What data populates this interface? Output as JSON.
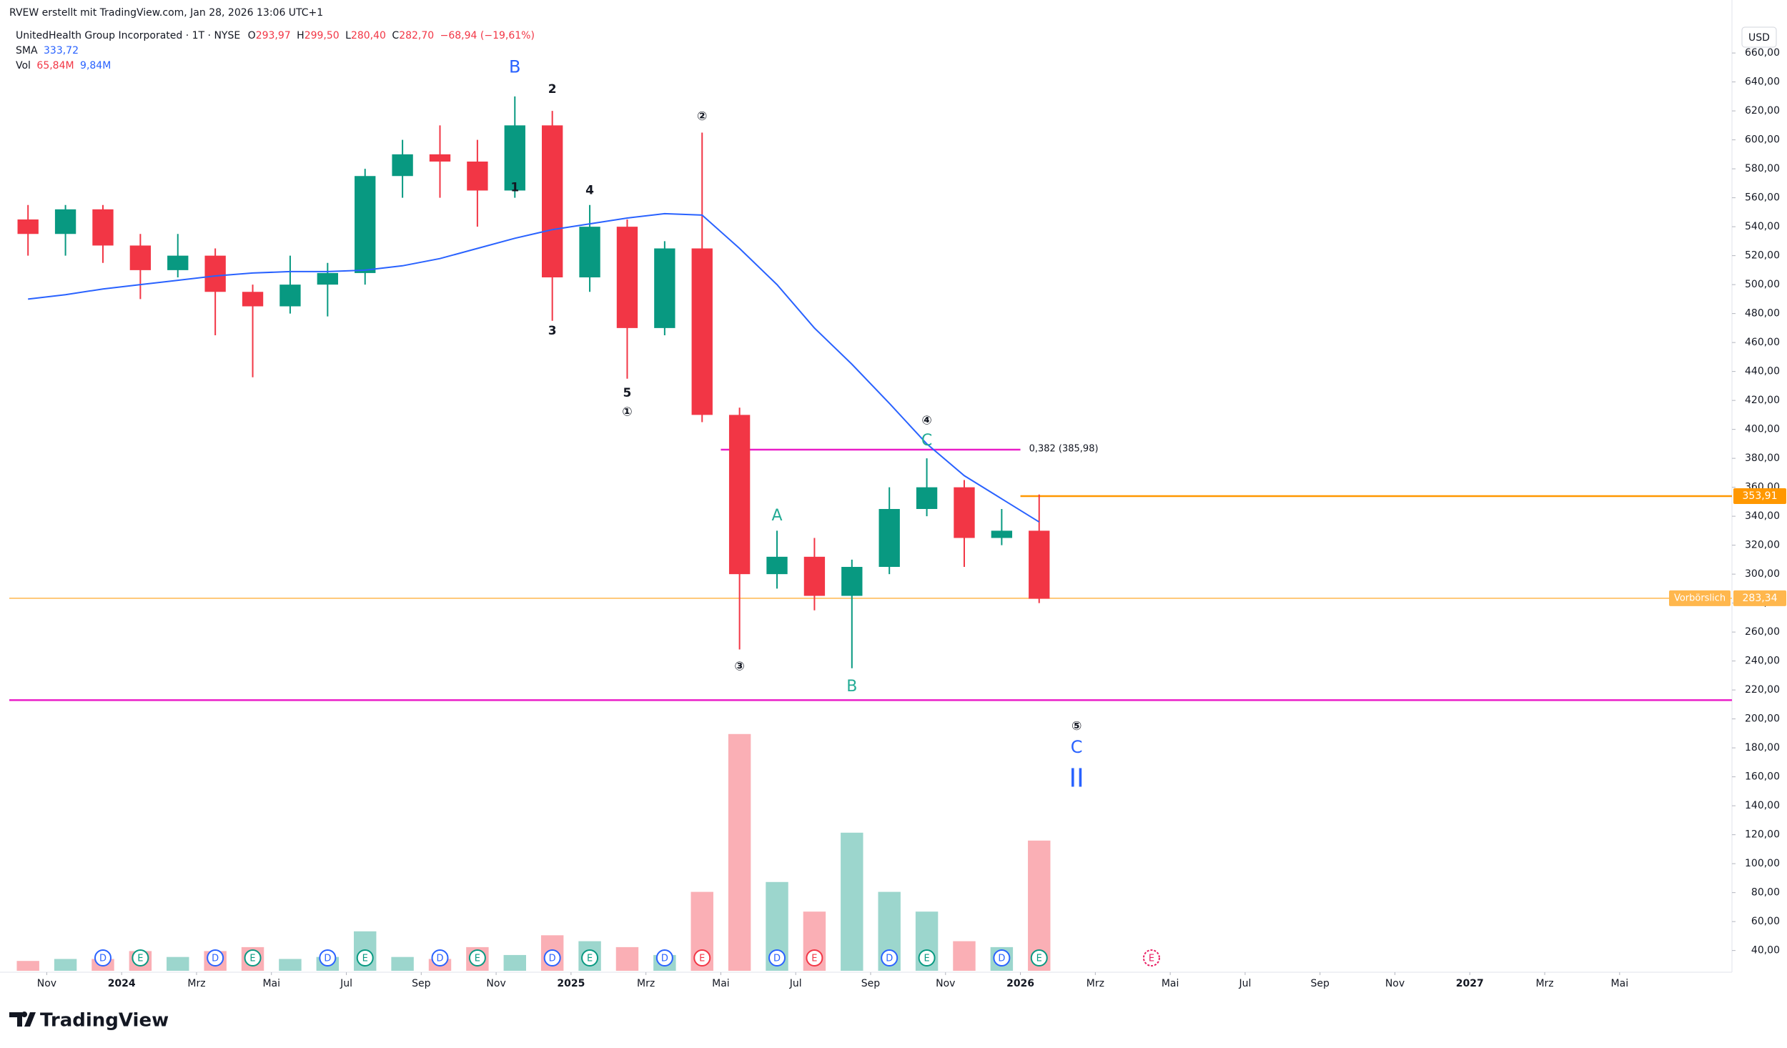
{
  "chart_data": {
    "type": "candlestick",
    "header": "RVEW erstellt mit TradingView.com, Jan 28, 2026 13:06 UTC+1",
    "legend": {
      "symbol": "UnitedHealth Group Incorporated · 1T · NYSE",
      "ohlc": [
        {
          "label": "O",
          "value": "293,97"
        },
        {
          "label": "H",
          "value": "299,50"
        },
        {
          "label": "L",
          "value": "280,40"
        },
        {
          "label": "C",
          "value": "282,70"
        }
      ],
      "change": "−68,94 (−19,61%)",
      "sma_name": "SMA",
      "sma_value": "333,72",
      "vol_name": "Vol",
      "vol_value": "65,84M",
      "vol_ma": "9,84M"
    },
    "currency": "USD",
    "brand": "TradingView",
    "up_color": "#089981",
    "down_color": "#f23645",
    "x": [
      "2023-10",
      "2023-11",
      "2023-12",
      "2024-01",
      "2024-02",
      "2024-03",
      "2024-04",
      "2024-05",
      "2024-06",
      "2024-07",
      "2024-08",
      "2024-09",
      "2024-10",
      "2024-11",
      "2024-12",
      "2025-01",
      "2025-02",
      "2025-03",
      "2025-04",
      "2025-05",
      "2025-06",
      "2025-07",
      "2025-08",
      "2025-09",
      "2025-10",
      "2025-11",
      "2025-12",
      "2026-01"
    ],
    "open": [
      545,
      535,
      552,
      527,
      510,
      520,
      495,
      485,
      500,
      508,
      575,
      590,
      585,
      565,
      610,
      505,
      540,
      470,
      525,
      410,
      300,
      312,
      285,
      305,
      345,
      360,
      325,
      330
    ],
    "high": [
      555,
      555,
      555,
      535,
      535,
      525,
      500,
      520,
      515,
      580,
      600,
      610,
      600,
      630,
      620,
      555,
      545,
      530,
      605,
      415,
      330,
      325,
      310,
      360,
      380,
      365,
      345,
      355
    ],
    "low": [
      520,
      520,
      515,
      490,
      505,
      465,
      436,
      480,
      478,
      500,
      560,
      560,
      540,
      560,
      475,
      495,
      435,
      465,
      405,
      248,
      290,
      275,
      235,
      300,
      340,
      305,
      320,
      280
    ],
    "close": [
      535,
      552,
      527,
      510,
      520,
      495,
      485,
      500,
      508,
      575,
      590,
      585,
      565,
      610,
      505,
      540,
      470,
      525,
      410,
      300,
      312,
      285,
      305,
      345,
      360,
      325,
      330,
      283
    ],
    "sma": {
      "name": "SMA",
      "color": "#2962ff",
      "values": [
        490,
        493,
        497,
        500,
        503,
        506,
        508,
        509,
        509,
        510,
        513,
        518,
        525,
        532,
        538,
        542,
        546,
        549,
        548,
        525,
        500,
        470,
        445,
        418,
        390,
        368,
        352,
        336
      ]
    },
    "volume": {
      "name": "Vol",
      "values": [
        5,
        6,
        6,
        10,
        7,
        10,
        12,
        6,
        7,
        20,
        7,
        6,
        12,
        8,
        18,
        15,
        12,
        8,
        40,
        120,
        45,
        30,
        70,
        40,
        30,
        15,
        12,
        66
      ]
    },
    "xlim": [
      "2023-10",
      "2027-08"
    ],
    "xticks": [
      {
        "value": "2023-11",
        "label": "Nov"
      },
      {
        "value": "2024-01",
        "label": "2024"
      },
      {
        "value": "2024-03",
        "label": "Mrz"
      },
      {
        "value": "2024-05",
        "label": "Mai"
      },
      {
        "value": "2024-07",
        "label": "Jul"
      },
      {
        "value": "2024-09",
        "label": "Sep"
      },
      {
        "value": "2024-11",
        "label": "Nov"
      },
      {
        "value": "2025-01",
        "label": "2025"
      },
      {
        "value": "2025-03",
        "label": "Mrz"
      },
      {
        "value": "2025-05",
        "label": "Mai"
      },
      {
        "value": "2025-07",
        "label": "Jul"
      },
      {
        "value": "2025-09",
        "label": "Sep"
      },
      {
        "value": "2025-11",
        "label": "Nov"
      },
      {
        "value": "2026-01",
        "label": "2026"
      },
      {
        "value": "2026-03",
        "label": "Mrz"
      },
      {
        "value": "2026-05",
        "label": "Mai"
      },
      {
        "value": "2026-07",
        "label": "Jul"
      },
      {
        "value": "2026-09",
        "label": "Sep"
      },
      {
        "value": "2026-11",
        "label": "Nov"
      },
      {
        "value": "2027-01",
        "label": "2027"
      },
      {
        "value": "2027-03",
        "label": "Mrz"
      },
      {
        "value": "2027-05",
        "label": "Mai"
      }
    ],
    "ylim": [
      26,
      665
    ],
    "yticks": [
      {
        "value": 40,
        "label": "40,00"
      },
      {
        "value": 60,
        "label": "60,00"
      },
      {
        "value": 80,
        "label": "80,00"
      },
      {
        "value": 100,
        "label": "100,00"
      },
      {
        "value": 120,
        "label": "120,00"
      },
      {
        "value": 140,
        "label": "140,00"
      },
      {
        "value": 160,
        "label": "160,00"
      },
      {
        "value": 180,
        "label": "180,00"
      },
      {
        "value": 200,
        "label": "200,00"
      },
      {
        "value": 220,
        "label": "220,00"
      },
      {
        "value": 240,
        "label": "240,00"
      },
      {
        "value": 260,
        "label": "260,00"
      },
      {
        "value": 280,
        "label": "280,00"
      },
      {
        "value": 300,
        "label": "300,00"
      },
      {
        "value": 320,
        "label": "320,00"
      },
      {
        "value": 340,
        "label": "340,00"
      },
      {
        "value": 360,
        "label": "360,00"
      },
      {
        "value": 380,
        "label": "380,00"
      },
      {
        "value": 400,
        "label": "400,00"
      },
      {
        "value": 420,
        "label": "420,00"
      },
      {
        "value": 440,
        "label": "440,00"
      },
      {
        "value": 460,
        "label": "460,00"
      },
      {
        "value": 480,
        "label": "480,00"
      },
      {
        "value": 500,
        "label": "500,00"
      },
      {
        "value": 520,
        "label": "520,00"
      },
      {
        "value": 540,
        "label": "540,00"
      },
      {
        "value": 560,
        "label": "560,00"
      },
      {
        "value": 580,
        "label": "580,00"
      },
      {
        "value": 600,
        "label": "600,00"
      },
      {
        "value": 620,
        "label": "620,00"
      },
      {
        "value": 640,
        "label": "640,00"
      },
      {
        "value": 660,
        "label": "660,00"
      }
    ],
    "grid": false,
    "levels": [
      {
        "value": 385.98,
        "label": "0,382 (385,98)",
        "color": "#e91ec8",
        "from": "2025-05",
        "to": "2026-01"
      },
      {
        "value": 213,
        "color": "#e91ec8"
      },
      {
        "value": 353.91,
        "label": "353,91",
        "color": "#ff9800",
        "from": "2026-01"
      },
      {
        "value": 283.34,
        "label": "283,34",
        "tag": "Vorbörslich",
        "color": "#ffb74d"
      }
    ],
    "annotations": [
      {
        "text": "B",
        "x": "2024-11",
        "y": 650,
        "color": "#2962ff"
      },
      {
        "text": "2",
        "x": "2024-12",
        "y": 635,
        "color": "#131722"
      },
      {
        "text": "1",
        "x": "2024-11",
        "y": 567,
        "color": "#131722"
      },
      {
        "text": "3",
        "x": "2024-12",
        "y": 468,
        "color": "#131722"
      },
      {
        "text": "4",
        "x": "2025-01",
        "y": 565,
        "color": "#131722"
      },
      {
        "text": "5",
        "x": "2025-02",
        "y": 425,
        "color": "#131722"
      },
      {
        "text": "①",
        "x": "2025-02",
        "y": 412,
        "color": "#131722"
      },
      {
        "text": "②",
        "x": "2025-04",
        "y": 616,
        "color": "#131722"
      },
      {
        "text": "③",
        "x": "2025-05",
        "y": 236,
        "color": "#131722"
      },
      {
        "text": "A",
        "x": "2025-06",
        "y": 340,
        "color": "#22ab94"
      },
      {
        "text": "B",
        "x": "2025-08",
        "y": 222,
        "color": "#22ab94"
      },
      {
        "text": "④",
        "x": "2025-10",
        "y": 406,
        "color": "#131722"
      },
      {
        "text": "C",
        "x": "2025-10",
        "y": 392,
        "color": "#22ab94"
      },
      {
        "text": "⑤",
        "x": "2026-02",
        "y": 195,
        "color": "#131722"
      },
      {
        "text": "C",
        "x": "2026-02",
        "y": 180,
        "color": "#2962ff"
      },
      {
        "text": "II",
        "x": "2026-02",
        "y": 158,
        "color": "#2962ff"
      }
    ],
    "events": [
      {
        "label": "D",
        "x": "2023-12",
        "color": "#2962ff"
      },
      {
        "label": "E",
        "x": "2024-01",
        "color": "#089981"
      },
      {
        "label": "D",
        "x": "2024-03",
        "color": "#2962ff"
      },
      {
        "label": "E",
        "x": "2024-04",
        "color": "#089981"
      },
      {
        "label": "D",
        "x": "2024-06",
        "color": "#2962ff"
      },
      {
        "label": "E",
        "x": "2024-07",
        "color": "#089981"
      },
      {
        "label": "D",
        "x": "2024-09",
        "color": "#2962ff"
      },
      {
        "label": "E",
        "x": "2024-10",
        "color": "#089981"
      },
      {
        "label": "D",
        "x": "2024-12",
        "color": "#2962ff"
      },
      {
        "label": "E",
        "x": "2025-01",
        "color": "#089981"
      },
      {
        "label": "D",
        "x": "2025-03",
        "color": "#2962ff"
      },
      {
        "label": "E",
        "x": "2025-04",
        "color": "#f23645"
      },
      {
        "label": "D",
        "x": "2025-06",
        "color": "#2962ff"
      },
      {
        "label": "E",
        "x": "2025-07",
        "color": "#f23645"
      },
      {
        "label": "D",
        "x": "2025-09",
        "color": "#2962ff"
      },
      {
        "label": "E",
        "x": "2025-10",
        "color": "#089981"
      },
      {
        "label": "D",
        "x": "2025-12",
        "color": "#2962ff"
      },
      {
        "label": "E",
        "x": "2026-01",
        "color": "#089981"
      },
      {
        "label": "E",
        "x": "2026-04",
        "color": "#e91e63"
      }
    ]
  }
}
